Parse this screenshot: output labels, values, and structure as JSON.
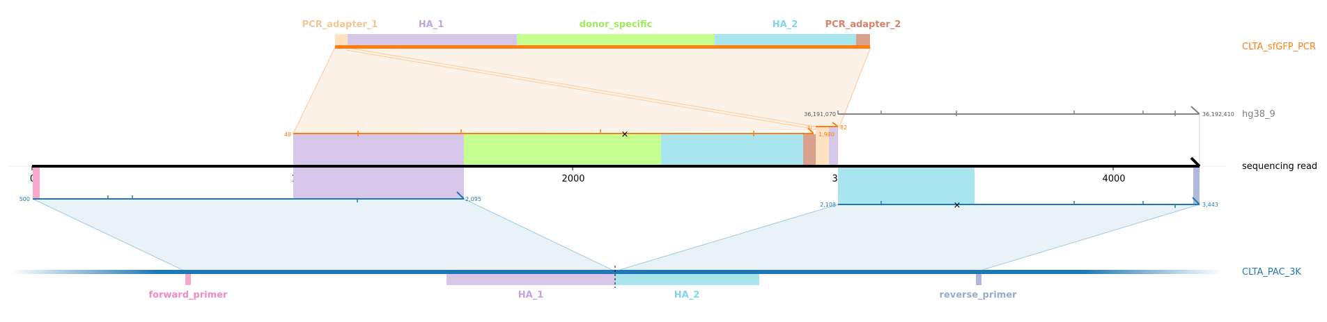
{
  "colors": {
    "orange": "#ff7f0e",
    "blue": "#1f77b4",
    "gray": "#808080",
    "black": "#000000",
    "pcr_adapter_1": "#ffd9b3",
    "pcr_adapter_2": "#d9a08c",
    "ha1": "#d6c7ea",
    "donor_specific": "#c5ff8f",
    "ha2": "#a9e5ef",
    "forward_primer": "#f7a8cf",
    "reverse_primer": "#aeb9dc",
    "orange_shade": "#fdefe3",
    "blue_shade": "#e9f2f7"
  },
  "tracks": {
    "clta_sfgfp_pcr": "CLTA_sfGFP_PCR",
    "hg38_9": "hg38_9",
    "sequencing_read": "sequencing read",
    "clta_pac_3k": "CLTA_PAC_3K"
  },
  "pcr_features": [
    {
      "label": "PCR_adapter_1",
      "color": "#f6c795"
    },
    {
      "label": "HA_1",
      "color": "#c3a4e0"
    },
    {
      "label": "donor_specific",
      "color": "#9dea5c"
    },
    {
      "label": "HA_2",
      "color": "#7fd6ea"
    },
    {
      "label": "PCR_adapter_2",
      "color": "#d9826a"
    }
  ],
  "pac_features": [
    {
      "label": "forward_primer",
      "color": "#f08bc4"
    },
    {
      "label": "HA_1",
      "color": "#c3a4e0"
    },
    {
      "label": "HA_2",
      "color": "#7fd6ea"
    },
    {
      "label": "reverse_primer",
      "color": "#9aaccd"
    }
  ],
  "read_axis": {
    "ticks": [
      "0",
      "1000",
      "2000",
      "3000",
      "4000"
    ]
  },
  "hg38": {
    "start": "36,191,070",
    "end": "36,192,410"
  },
  "pcr_alignment": {
    "start": "48",
    "mid_small": "1,980",
    "mid_small_2": "1/",
    "end": "82"
  },
  "pac_alignment": {
    "left_start": "500",
    "left_end": "2,095",
    "right_start": "2,108",
    "right_end": "3,443"
  }
}
